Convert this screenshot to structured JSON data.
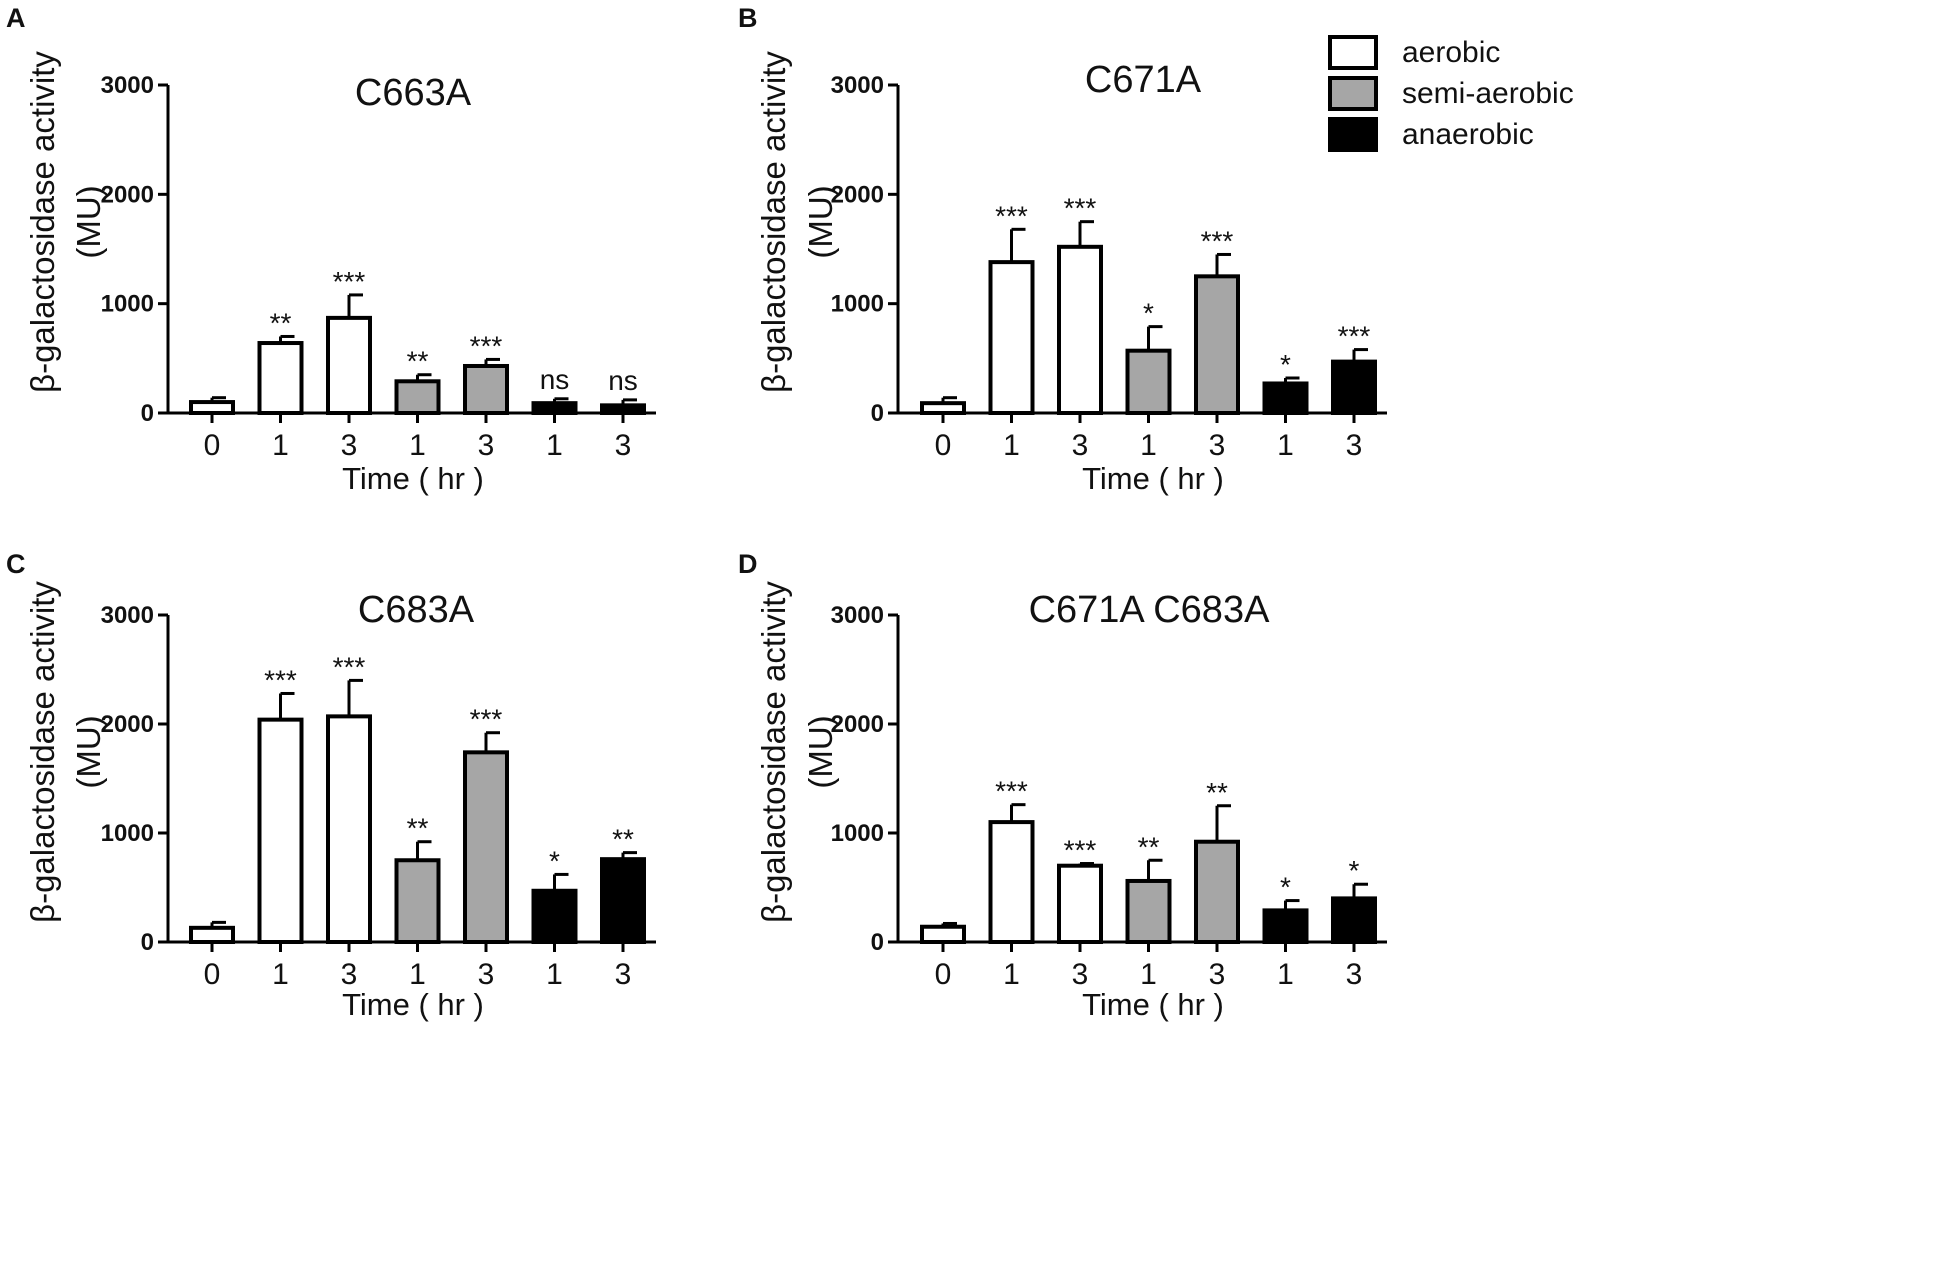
{
  "legend": [
    {
      "label": "aerobic",
      "color": "#ffffff"
    },
    {
      "label": "semi-aerobic",
      "color": "#a6a6a6"
    },
    {
      "label": "anaerobic",
      "color": "#000000"
    }
  ],
  "chart_data": [
    {
      "type": "bar",
      "panel": "A",
      "title": "C663A",
      "ylabel": [
        "β-galactosidase activity",
        "(MU)"
      ],
      "xlabel": "Time ( hr )",
      "ylim": [
        0,
        3000
      ],
      "yticks": [
        0,
        1000,
        2000,
        3000
      ],
      "categories": [
        "0",
        "1",
        "3",
        "1",
        "3",
        "1",
        "3"
      ],
      "conditions": [
        "aerobic",
        "aerobic",
        "aerobic",
        "semi-aerobic",
        "semi-aerobic",
        "anaerobic",
        "anaerobic"
      ],
      "values": [
        100,
        640,
        870,
        290,
        430,
        90,
        70
      ],
      "errors": [
        40,
        60,
        210,
        60,
        60,
        40,
        50
      ],
      "significance": [
        "",
        "**",
        "***",
        "**",
        "***",
        "ns",
        "ns"
      ]
    },
    {
      "type": "bar",
      "panel": "B",
      "title": "C671A",
      "ylabel": [
        "β-galactosidase activity",
        "(MU)"
      ],
      "xlabel": "Time ( hr )",
      "ylim": [
        0,
        3000
      ],
      "yticks": [
        0,
        1000,
        2000,
        3000
      ],
      "categories": [
        "0",
        "1",
        "3",
        "1",
        "3",
        "1",
        "3"
      ],
      "conditions": [
        "aerobic",
        "aerobic",
        "aerobic",
        "semi-aerobic",
        "semi-aerobic",
        "anaerobic",
        "anaerobic"
      ],
      "values": [
        90,
        1380,
        1520,
        570,
        1250,
        270,
        470
      ],
      "errors": [
        50,
        300,
        230,
        220,
        200,
        50,
        110
      ],
      "significance": [
        "",
        "***",
        "***",
        "*",
        "***",
        "*",
        "***"
      ]
    },
    {
      "type": "bar",
      "panel": "C",
      "title": "C683A",
      "ylabel": [
        "β-galactosidase activity",
        "(MU)"
      ],
      "xlabel": "Time ( hr )",
      "ylim": [
        0,
        3000
      ],
      "yticks": [
        0,
        1000,
        2000,
        3000
      ],
      "categories": [
        "0",
        "1",
        "3",
        "1",
        "3",
        "1",
        "3"
      ],
      "conditions": [
        "aerobic",
        "aerobic",
        "aerobic",
        "semi-aerobic",
        "semi-aerobic",
        "anaerobic",
        "anaerobic"
      ],
      "values": [
        130,
        2040,
        2070,
        750,
        1740,
        470,
        760
      ],
      "errors": [
        50,
        240,
        330,
        170,
        180,
        150,
        60
      ],
      "significance": [
        "",
        "***",
        "***",
        "**",
        "***",
        "*",
        "**"
      ]
    },
    {
      "type": "bar",
      "panel": "D",
      "title": "C671A C683A",
      "ylabel": [
        "β-galactosidase activity",
        "(MU)"
      ],
      "xlabel": "Time ( hr )",
      "ylim": [
        0,
        3000
      ],
      "yticks": [
        0,
        1000,
        2000,
        3000
      ],
      "categories": [
        "0",
        "1",
        "3",
        "1",
        "3",
        "1",
        "3"
      ],
      "conditions": [
        "aerobic",
        "aerobic",
        "aerobic",
        "semi-aerobic",
        "semi-aerobic",
        "anaerobic",
        "anaerobic"
      ],
      "values": [
        140,
        1100,
        700,
        560,
        920,
        290,
        400
      ],
      "errors": [
        30,
        160,
        20,
        190,
        330,
        90,
        130
      ],
      "significance": [
        "",
        "***",
        "***",
        "**",
        "**",
        "*",
        "*"
      ]
    }
  ]
}
